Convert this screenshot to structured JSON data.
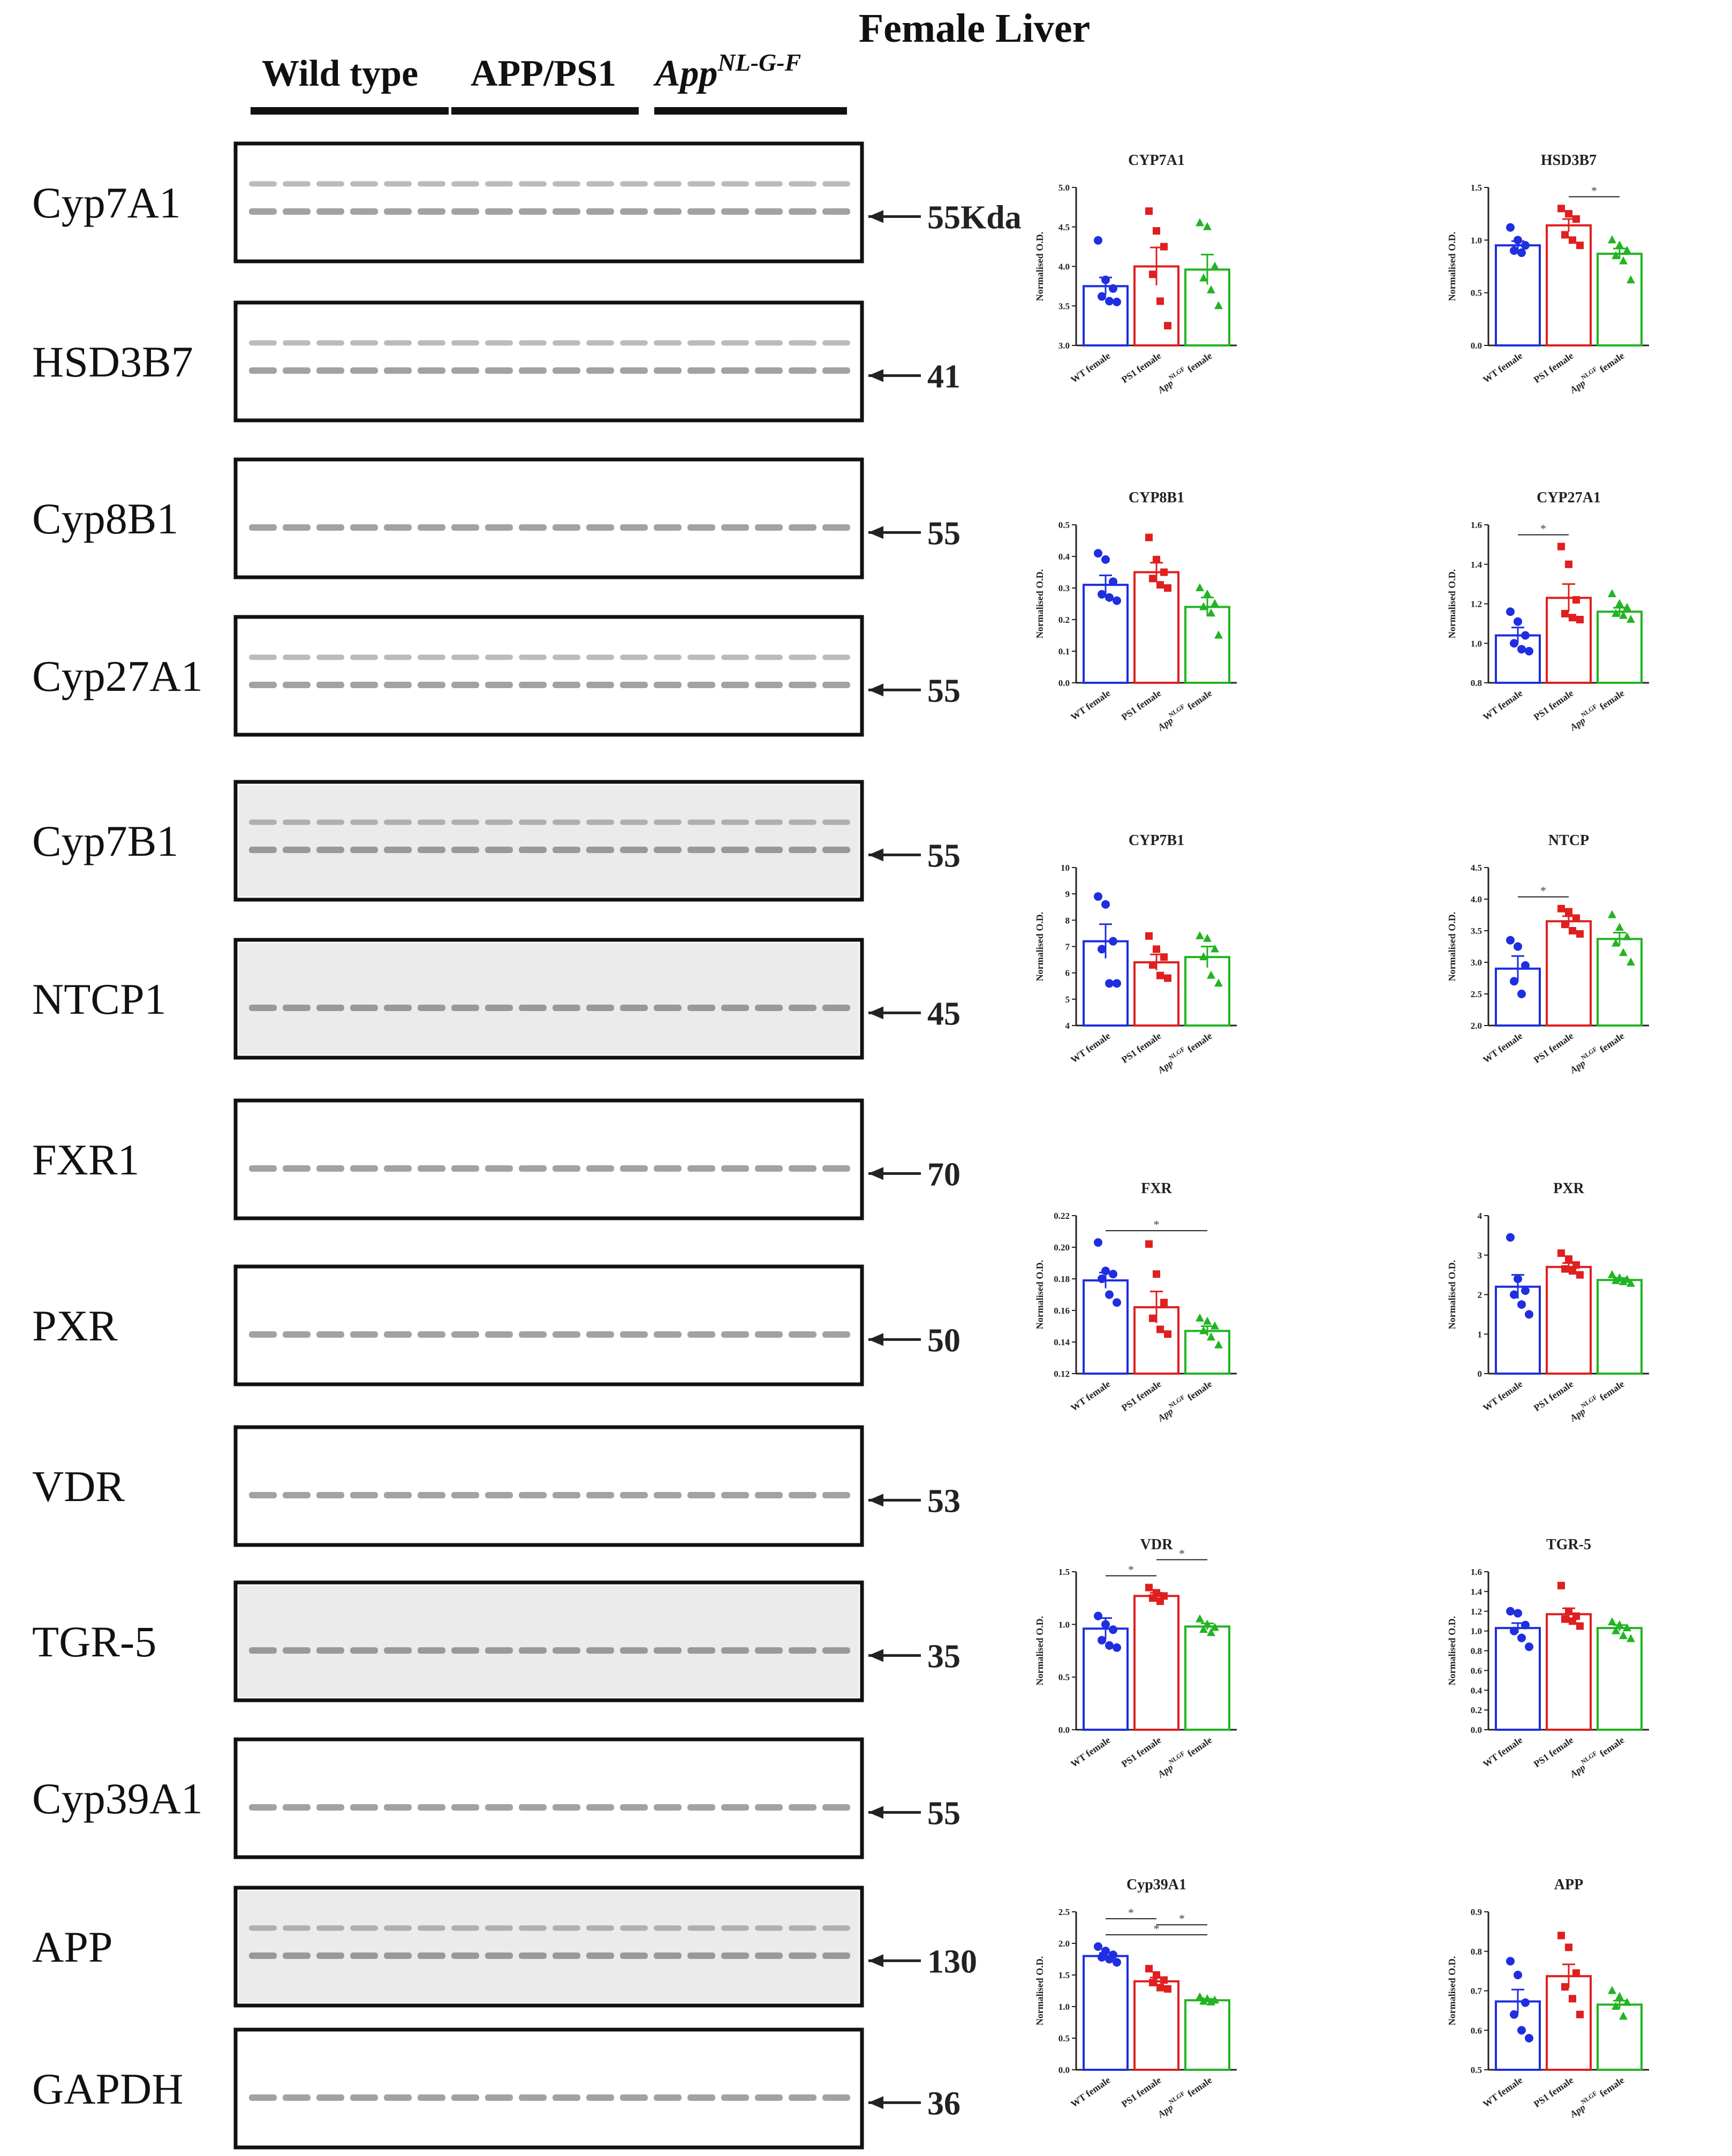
{
  "figure": {
    "title": "Female Liver",
    "groups": [
      "Wild type",
      "APP/PS1",
      "App"
    ],
    "group3_superscript": "NL-G-F"
  },
  "blots": [
    {
      "protein": "Cyp7A1",
      "kda": "55Kda"
    },
    {
      "protein": "HSD3B7",
      "kda": "41"
    },
    {
      "protein": "Cyp8B1",
      "kda": "55"
    },
    {
      "protein": "Cyp27A1",
      "kda": "55"
    },
    {
      "protein": "Cyp7B1",
      "kda": "55"
    },
    {
      "protein": "NTCP1",
      "kda": "45"
    },
    {
      "protein": "FXR1",
      "kda": "70"
    },
    {
      "protein": "PXR",
      "kda": "50"
    },
    {
      "protein": "VDR",
      "kda": "53"
    },
    {
      "protein": "TGR-5",
      "kda": "35"
    },
    {
      "protein": "Cyp39A1",
      "kda": "55"
    },
    {
      "protein": "APP",
      "kda": "130"
    },
    {
      "protein": "GAPDH",
      "kda": "36"
    }
  ],
  "colors": {
    "wt": "#1f2ee0",
    "ps1": "#e01f1f",
    "nlgf": "#22b422"
  },
  "chart_common": {
    "ylabel": "Normalised O.D.",
    "categories": [
      "WT female",
      "PS1 female",
      "App NLGF female"
    ],
    "cat_sup": "NLGF"
  },
  "chart_data": [
    {
      "type": "bar",
      "title": "CYP7A1",
      "ylim": [
        3.0,
        5.0
      ],
      "yticks": [
        "3.0",
        "3.5",
        "4.0",
        "4.5",
        "5.0"
      ],
      "means": [
        3.75,
        4.0,
        3.96
      ],
      "sem": [
        0.11,
        0.24,
        0.19
      ],
      "points": [
        [
          4.33,
          3.83,
          3.72,
          3.62,
          3.56,
          3.55
        ],
        [
          4.7,
          4.45,
          4.25,
          3.9,
          3.56,
          3.25
        ],
        [
          4.55,
          4.5,
          4.0,
          3.85,
          3.7,
          3.5
        ]
      ],
      "sig": []
    },
    {
      "type": "bar",
      "title": "HSD3B7",
      "ylim": [
        0.0,
        1.5
      ],
      "yticks": [
        "0.0",
        "0.5",
        "1.0",
        "1.5"
      ],
      "means": [
        0.95,
        1.14,
        0.87
      ],
      "sem": [
        0.04,
        0.06,
        0.05
      ],
      "points": [
        [
          1.12,
          1.0,
          0.95,
          0.9,
          0.88
        ],
        [
          1.3,
          1.25,
          1.2,
          1.05,
          1.0,
          0.95
        ],
        [
          1.0,
          0.95,
          0.9,
          0.85,
          0.8,
          0.62
        ]
      ],
      "sig": [
        {
          "from": 1,
          "to": 2,
          "label": "*"
        }
      ]
    },
    {
      "type": "bar",
      "title": "CYP8B1",
      "ylim": [
        0.0,
        0.5
      ],
      "yticks": [
        "0.0",
        "0.1",
        "0.2",
        "0.3",
        "0.4",
        "0.5"
      ],
      "means": [
        0.31,
        0.35,
        0.24
      ],
      "sem": [
        0.03,
        0.03,
        0.03
      ],
      "points": [
        [
          0.41,
          0.39,
          0.32,
          0.28,
          0.27,
          0.26
        ],
        [
          0.46,
          0.39,
          0.35,
          0.33,
          0.31,
          0.3
        ],
        [
          0.3,
          0.28,
          0.25,
          0.24,
          0.22,
          0.15
        ]
      ],
      "sig": []
    },
    {
      "type": "bar",
      "title": "CYP27A1",
      "ylim": [
        0.8,
        1.6
      ],
      "yticks": [
        "0.8",
        "1.0",
        "1.2",
        "1.4",
        "1.6"
      ],
      "means": [
        1.04,
        1.23,
        1.16
      ],
      "sem": [
        0.04,
        0.07,
        0.02
      ],
      "points": [
        [
          1.16,
          1.11,
          1.04,
          1.0,
          0.97,
          0.96
        ],
        [
          1.49,
          1.4,
          1.22,
          1.15,
          1.13,
          1.12
        ],
        [
          1.25,
          1.2,
          1.18,
          1.15,
          1.14,
          1.12
        ]
      ],
      "sig": [
        {
          "from": 0,
          "to": 1,
          "label": "*"
        }
      ]
    },
    {
      "type": "bar",
      "title": "CYP7B1",
      "ylim": [
        4,
        10
      ],
      "yticks": [
        "4",
        "5",
        "6",
        "7",
        "8",
        "9",
        "10"
      ],
      "means": [
        7.2,
        6.4,
        6.6
      ],
      "sem": [
        0.65,
        0.3,
        0.4
      ],
      "points": [
        [
          8.9,
          8.6,
          7.2,
          6.9,
          5.6,
          5.6
        ],
        [
          7.4,
          6.9,
          6.6,
          6.3,
          5.9,
          5.8
        ],
        [
          7.4,
          7.3,
          6.9,
          6.6,
          5.9,
          5.6
        ]
      ],
      "sig": []
    },
    {
      "type": "bar",
      "title": "NTCP",
      "ylim": [
        2.0,
        4.5
      ],
      "yticks": [
        "2.0",
        "2.5",
        "3.0",
        "3.5",
        "4.0",
        "4.5"
      ],
      "means": [
        2.9,
        3.65,
        3.37
      ],
      "sem": [
        0.2,
        0.08,
        0.1
      ],
      "points": [
        [
          3.35,
          3.25,
          2.95,
          2.7,
          2.5
        ],
        [
          3.85,
          3.8,
          3.7,
          3.6,
          3.5,
          3.45
        ],
        [
          3.75,
          3.55,
          3.4,
          3.3,
          3.15,
          3.0
        ]
      ],
      "sig": [
        {
          "from": 0,
          "to": 1,
          "label": "*"
        }
      ]
    },
    {
      "type": "bar",
      "title": "FXR",
      "ylim": [
        0.12,
        0.22
      ],
      "yticks": [
        "0.12",
        "0.14",
        "0.16",
        "0.18",
        "0.20",
        "0.22"
      ],
      "means": [
        0.179,
        0.162,
        0.147
      ],
      "sem": [
        0.005,
        0.01,
        0.003
      ],
      "points": [
        [
          0.203,
          0.185,
          0.183,
          0.18,
          0.17,
          0.165
        ],
        [
          0.202,
          0.183,
          0.165,
          0.155,
          0.148,
          0.145
        ],
        [
          0.155,
          0.153,
          0.15,
          0.147,
          0.143,
          0.138
        ]
      ],
      "sig": [
        {
          "from": 0,
          "to": 2,
          "label": "*"
        }
      ]
    },
    {
      "type": "bar",
      "title": "PXR",
      "ylim": [
        0,
        4
      ],
      "yticks": [
        "0",
        "1",
        "2",
        "3",
        "4"
      ],
      "means": [
        2.2,
        2.7,
        2.37
      ],
      "sem": [
        0.3,
        0.1,
        0.05
      ],
      "points": [
        [
          3.45,
          2.4,
          2.1,
          2.0,
          1.75,
          1.5
        ],
        [
          3.05,
          2.9,
          2.75,
          2.65,
          2.6,
          2.5
        ],
        [
          2.5,
          2.42,
          2.38,
          2.35,
          2.32,
          2.28
        ]
      ],
      "sig": []
    },
    {
      "type": "bar",
      "title": "VDR",
      "ylim": [
        0.0,
        1.5
      ],
      "yticks": [
        "0.0",
        "0.5",
        "1.0",
        "1.5"
      ],
      "means": [
        0.96,
        1.27,
        0.98
      ],
      "sem": [
        0.1,
        0.03,
        0.03
      ],
      "points": [
        [
          1.08,
          1.0,
          0.95,
          0.85,
          0.8,
          0.78
        ],
        [
          1.35,
          1.3,
          1.27,
          1.25,
          1.22
        ],
        [
          1.05,
          1.0,
          0.97,
          0.95,
          0.92
        ]
      ],
      "sig": [
        {
          "from": 0,
          "to": 1,
          "label": "*"
        },
        {
          "from": 1,
          "to": 2,
          "label": "*"
        }
      ]
    },
    {
      "type": "bar",
      "title": "TGR-5",
      "ylim": [
        0.0,
        1.6
      ],
      "yticks": [
        "0.0",
        "0.2",
        "0.4",
        "0.6",
        "0.8",
        "1.0",
        "1.2",
        "1.4",
        "1.6"
      ],
      "means": [
        1.03,
        1.17,
        1.03
      ],
      "sem": [
        0.05,
        0.06,
        0.03
      ],
      "points": [
        [
          1.2,
          1.18,
          1.06,
          1.0,
          0.93,
          0.84
        ],
        [
          1.46,
          1.2,
          1.15,
          1.12,
          1.1,
          1.05
        ],
        [
          1.09,
          1.06,
          1.03,
          1.0,
          0.95,
          0.92
        ]
      ],
      "sig": []
    },
    {
      "type": "bar",
      "title": "Cyp39A1",
      "ylim": [
        0.0,
        2.5
      ],
      "yticks": [
        "0.0",
        "0.5",
        "1.0",
        "1.5",
        "2.0",
        "2.5"
      ],
      "means": [
        1.8,
        1.4,
        1.1
      ],
      "sem": [
        0.05,
        0.06,
        0.02
      ],
      "points": [
        [
          1.95,
          1.88,
          1.82,
          1.78,
          1.75,
          1.7
        ],
        [
          1.6,
          1.5,
          1.42,
          1.38,
          1.3,
          1.28
        ],
        [
          1.15,
          1.12,
          1.1,
          1.08,
          1.07
        ]
      ],
      "sig": [
        {
          "from": 0,
          "to": 2,
          "label": "*"
        },
        {
          "from": 0,
          "to": 1,
          "label": "*"
        },
        {
          "from": 1,
          "to": 2,
          "label": "*"
        }
      ]
    },
    {
      "type": "bar",
      "title": "APP",
      "ylim": [
        0.5,
        0.9
      ],
      "yticks": [
        "0.5",
        "0.6",
        "0.7",
        "0.8",
        "0.9"
      ],
      "means": [
        0.673,
        0.737,
        0.665
      ],
      "sem": [
        0.03,
        0.03,
        0.01
      ],
      "points": [
        [
          0.775,
          0.74,
          0.67,
          0.64,
          0.6,
          0.58
        ],
        [
          0.84,
          0.81,
          0.745,
          0.71,
          0.68,
          0.64
        ],
        [
          0.7,
          0.685,
          0.67,
          0.66,
          0.635
        ]
      ],
      "sig": []
    }
  ]
}
